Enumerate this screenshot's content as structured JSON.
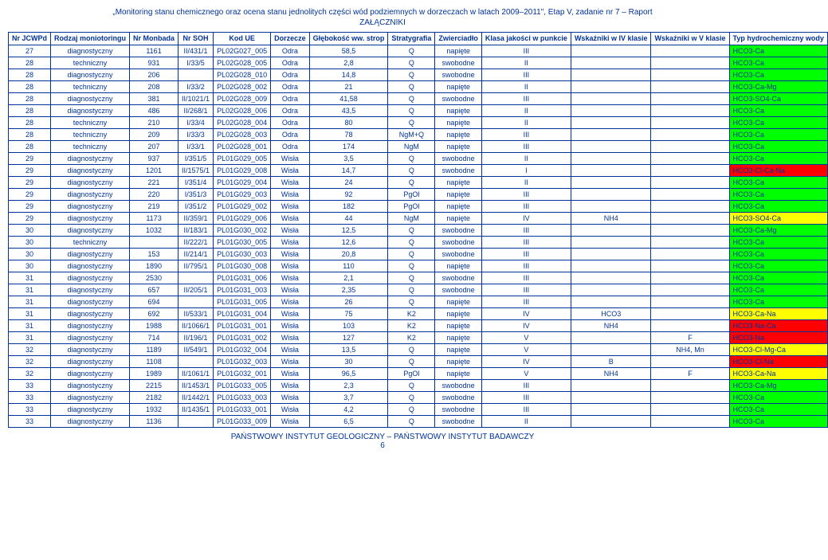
{
  "header": {
    "title": "„Monitoring stanu chemicznego oraz ocena stanu jednolitych części wód podziemnych w dorzeczach w latach 2009–2011\", Etap V, zadanie nr 7 – Raport",
    "subtitle": "ZAŁĄCZNIKI"
  },
  "columns": [
    "Nr JCWPd",
    "Rodzaj moniotoringu",
    "Nr Monbada",
    "Nr SOH",
    "Kod UE",
    "Dorzecze",
    "Głębokość ww. strop",
    "Stratygrafia",
    "Zwierciadło",
    "Klasa jakości w punkcie",
    "Wskaźniki w IV klasie",
    "Wskaźniki w V klasie",
    "Typ hydrochemiczny wody"
  ],
  "rows": [
    {
      "c": [
        "27",
        "diagnostyczny",
        "1161",
        "II/431/1",
        "PL02G027_005",
        "Odra",
        "58,5",
        "Q",
        "napięte",
        "III",
        "",
        "",
        "HCO3-Ca"
      ],
      "bg": "#00ff00"
    },
    {
      "c": [
        "28",
        "techniczny",
        "931",
        "I/33/5",
        "PL02G028_005",
        "Odra",
        "2,8",
        "Q",
        "swobodne",
        "II",
        "",
        "",
        "HCO3-Ca"
      ],
      "bg": "#00ff00"
    },
    {
      "c": [
        "28",
        "diagnostyczny",
        "206",
        "",
        "PL02G028_010",
        "Odra",
        "14,8",
        "Q",
        "swobodne",
        "III",
        "",
        "",
        "HCO3-Ca"
      ],
      "bg": "#00ff00"
    },
    {
      "c": [
        "28",
        "techniczny",
        "208",
        "I/33/2",
        "PL02G028_002",
        "Odra",
        "21",
        "Q",
        "napięte",
        "II",
        "",
        "",
        "HCO3-Ca-Mg"
      ],
      "bg": "#00ff00"
    },
    {
      "c": [
        "28",
        "diagnostyczny",
        "381",
        "II/1021/1",
        "PL02G028_009",
        "Odra",
        "41,58",
        "Q",
        "swobodne",
        "III",
        "",
        "",
        "HCO3-SO4-Ca"
      ],
      "bg": "#00ff00"
    },
    {
      "c": [
        "28",
        "diagnostyczny",
        "486",
        "II/268/1",
        "PL02G028_006",
        "Odra",
        "43,5",
        "Q",
        "napięte",
        "II",
        "",
        "",
        "HCO3-Ca"
      ],
      "bg": "#00ff00"
    },
    {
      "c": [
        "28",
        "techniczny",
        "210",
        "I/33/4",
        "PL02G028_004",
        "Odra",
        "80",
        "Q",
        "napięte",
        "II",
        "",
        "",
        "HCO3-Ca"
      ],
      "bg": "#00ff00"
    },
    {
      "c": [
        "28",
        "techniczny",
        "209",
        "I/33/3",
        "PL02G028_003",
        "Odra",
        "78",
        "NgM+Q",
        "napięte",
        "III",
        "",
        "",
        "HCO3-Ca"
      ],
      "bg": "#00ff00"
    },
    {
      "c": [
        "28",
        "techniczny",
        "207",
        "I/33/1",
        "PL02G028_001",
        "Odra",
        "174",
        "NgM",
        "napięte",
        "III",
        "",
        "",
        "HCO3-Ca"
      ],
      "bg": "#00ff00"
    },
    {
      "c": [
        "29",
        "diagnostyczny",
        "937",
        "I/351/5",
        "PL01G029_005",
        "Wisła",
        "3,5",
        "Q",
        "swobodne",
        "II",
        "",
        "",
        "HCO3-Ca"
      ],
      "bg": "#00ff00"
    },
    {
      "c": [
        "29",
        "diagnostyczny",
        "1201",
        "II/1575/1",
        "PL01G029_008",
        "Wisła",
        "14,7",
        "Q",
        "swobodne",
        "I",
        "",
        "",
        "HCO3-Cl-Ca-Na"
      ],
      "bg": "#ff0000"
    },
    {
      "c": [
        "29",
        "diagnostyczny",
        "221",
        "I/351/4",
        "PL01G029_004",
        "Wisła",
        "24",
        "Q",
        "napięte",
        "II",
        "",
        "",
        "HCO3-Ca"
      ],
      "bg": "#00ff00"
    },
    {
      "c": [
        "29",
        "diagnostyczny",
        "220",
        "I/351/3",
        "PL01G029_003",
        "Wisła",
        "92",
        "PgOl",
        "napięte",
        "III",
        "",
        "",
        "HCO3-Ca"
      ],
      "bg": "#00ff00"
    },
    {
      "c": [
        "29",
        "diagnostyczny",
        "219",
        "I/351/2",
        "PL01G029_002",
        "Wisła",
        "182",
        "PgOl",
        "napięte",
        "III",
        "",
        "",
        "HCO3-Ca"
      ],
      "bg": "#00ff00"
    },
    {
      "c": [
        "29",
        "diagnostyczny",
        "1173",
        "II/359/1",
        "PL01G029_006",
        "Wisła",
        "44",
        "NgM",
        "napięte",
        "IV",
        "NH4",
        "",
        "HCO3-SO4-Ca"
      ],
      "bg": "#ffff00"
    },
    {
      "c": [
        "30",
        "diagnostyczny",
        "1032",
        "II/183/1",
        "PL01G030_002",
        "Wisła",
        "12,5",
        "Q",
        "swobodne",
        "III",
        "",
        "",
        "HCO3-Ca-Mg"
      ],
      "bg": "#00ff00"
    },
    {
      "c": [
        "30",
        "techniczny",
        "",
        "II/222/1",
        "PL01G030_005",
        "Wisła",
        "12,6",
        "Q",
        "swobodne",
        "III",
        "",
        "",
        "HCO3-Ca"
      ],
      "bg": "#00ff00"
    },
    {
      "c": [
        "30",
        "diagnostyczny",
        "153",
        "II/214/1",
        "PL01G030_003",
        "Wisła",
        "20,8",
        "Q",
        "swobodne",
        "III",
        "",
        "",
        "HCO3-Ca"
      ],
      "bg": "#00ff00"
    },
    {
      "c": [
        "30",
        "diagnostyczny",
        "1890",
        "II/795/1",
        "PL01G030_008",
        "Wisła",
        "110",
        "Q",
        "napięte",
        "III",
        "",
        "",
        "HCO3-Ca"
      ],
      "bg": "#00ff00"
    },
    {
      "c": [
        "31",
        "diagnostyczny",
        "2530",
        "",
        "PL01G031_006",
        "Wisła",
        "2,1",
        "Q",
        "swobodne",
        "III",
        "",
        "",
        "HCO3-Ca"
      ],
      "bg": "#00ff00"
    },
    {
      "c": [
        "31",
        "diagnostyczny",
        "657",
        "II/205/1",
        "PL01G031_003",
        "Wisła",
        "2,35",
        "Q",
        "swobodne",
        "III",
        "",
        "",
        "HCO3-Ca"
      ],
      "bg": "#00ff00"
    },
    {
      "c": [
        "31",
        "diagnostyczny",
        "694",
        "",
        "PL01G031_005",
        "Wisła",
        "26",
        "Q",
        "napięte",
        "III",
        "",
        "",
        "HCO3-Ca"
      ],
      "bg": "#00ff00"
    },
    {
      "c": [
        "31",
        "diagnostyczny",
        "692",
        "II/533/1",
        "PL01G031_004",
        "Wisła",
        "75",
        "K2",
        "napięte",
        "IV",
        "HCO3",
        "",
        "HCO3-Ca-Na"
      ],
      "bg": "#ffff00"
    },
    {
      "c": [
        "31",
        "diagnostyczny",
        "1988",
        "II/1066/1",
        "PL01G031_001",
        "Wisła",
        "103",
        "K2",
        "napięte",
        "IV",
        "NH4",
        "",
        "HCO3-Na-Ca"
      ],
      "bg": "#ff0000"
    },
    {
      "c": [
        "31",
        "diagnostyczny",
        "714",
        "II/196/1",
        "PL01G031_002",
        "Wisła",
        "127",
        "K2",
        "napięte",
        "V",
        "",
        "F",
        "HCO3-Na"
      ],
      "bg": "#ff0000"
    },
    {
      "c": [
        "32",
        "diagnostyczny",
        "1189",
        "II/549/1",
        "PL01G032_004",
        "Wisła",
        "13,5",
        "Q",
        "napięte",
        "V",
        "",
        "NH4, Mn",
        "HCO3-Cl-Mg-Ca"
      ],
      "bg": "#ffff00"
    },
    {
      "c": [
        "32",
        "diagnostyczny",
        "1108",
        "",
        "PL01G032_003",
        "Wisła",
        "30",
        "Q",
        "napięte",
        "IV",
        "B",
        "",
        "HCO3-Cl-Na"
      ],
      "bg": "#ff0000"
    },
    {
      "c": [
        "32",
        "diagnostyczny",
        "1989",
        "II/1061/1",
        "PL01G032_001",
        "Wisła",
        "96,5",
        "PgOl",
        "napięte",
        "V",
        "NH4",
        "F",
        "HCO3-Ca-Na"
      ],
      "bg": "#ffff00"
    },
    {
      "c": [
        "33",
        "diagnostyczny",
        "2215",
        "II/1453/1",
        "PL01G033_005",
        "Wisła",
        "2,3",
        "Q",
        "swobodne",
        "III",
        "",
        "",
        "HCO3-Ca-Mg"
      ],
      "bg": "#00ff00"
    },
    {
      "c": [
        "33",
        "diagnostyczny",
        "2182",
        "II/1442/1",
        "PL01G033_003",
        "Wisła",
        "3,7",
        "Q",
        "swobodne",
        "III",
        "",
        "",
        "HCO3-Ca"
      ],
      "bg": "#00ff00"
    },
    {
      "c": [
        "33",
        "diagnostyczny",
        "1932",
        "II/1435/1",
        "PL01G033_001",
        "Wisła",
        "4,2",
        "Q",
        "swobodne",
        "III",
        "",
        "",
        "HCO3-Ca"
      ],
      "bg": "#00ff00"
    },
    {
      "c": [
        "33",
        "diagnostyczny",
        "1136",
        "",
        "PL01G033_009",
        "Wisła",
        "6,5",
        "Q",
        "swobodne",
        "II",
        "",
        "",
        "HCO3-Ca"
      ],
      "bg": "#00ff00"
    }
  ],
  "footer": {
    "line": "PAŃSTWOWY INSTYTUT GEOLOGICZNY – PAŃSTWOWY INSTYTUT BADAWCZY",
    "page": "6"
  }
}
